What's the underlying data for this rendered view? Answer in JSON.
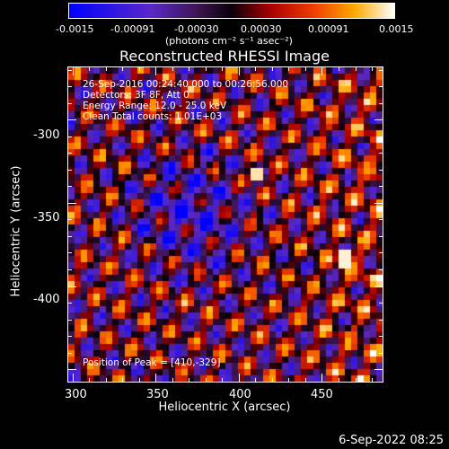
{
  "colorbar": {
    "tick_labels": [
      "-0.0015",
      "-0.00091",
      "-0.00030",
      "0.00030",
      "0.00091",
      "0.0015"
    ],
    "unit_label": "(photons cm⁻² s⁻¹ asec⁻²)"
  },
  "title": "Reconstructed RHESSI Image",
  "annotations": {
    "time": "26-Sep-2016 00:24:40.000 to 00:26:56.000",
    "detectors": "Detectors: 3F 8F, Att 0",
    "energy": "Energy Range: 12.0 - 25.0 keV",
    "clean": "Clean     Total counts: 1.01E+03",
    "peak": "Position of Peak = [410,-329]"
  },
  "axes": {
    "x_ticks": [
      "300",
      "350",
      "400",
      "450"
    ],
    "y_ticks": [
      "-300",
      "-350",
      "-400"
    ],
    "xlabel": "Heliocentric X (arcsec)",
    "ylabel": "Heliocentric Y (arcsec)",
    "xlim": [
      297,
      487
    ],
    "ylim": [
      -458,
      -268
    ]
  },
  "footer": "6-Sep-2022 08:25",
  "colors": {
    "background": "#000000",
    "text": "#ffffff"
  }
}
